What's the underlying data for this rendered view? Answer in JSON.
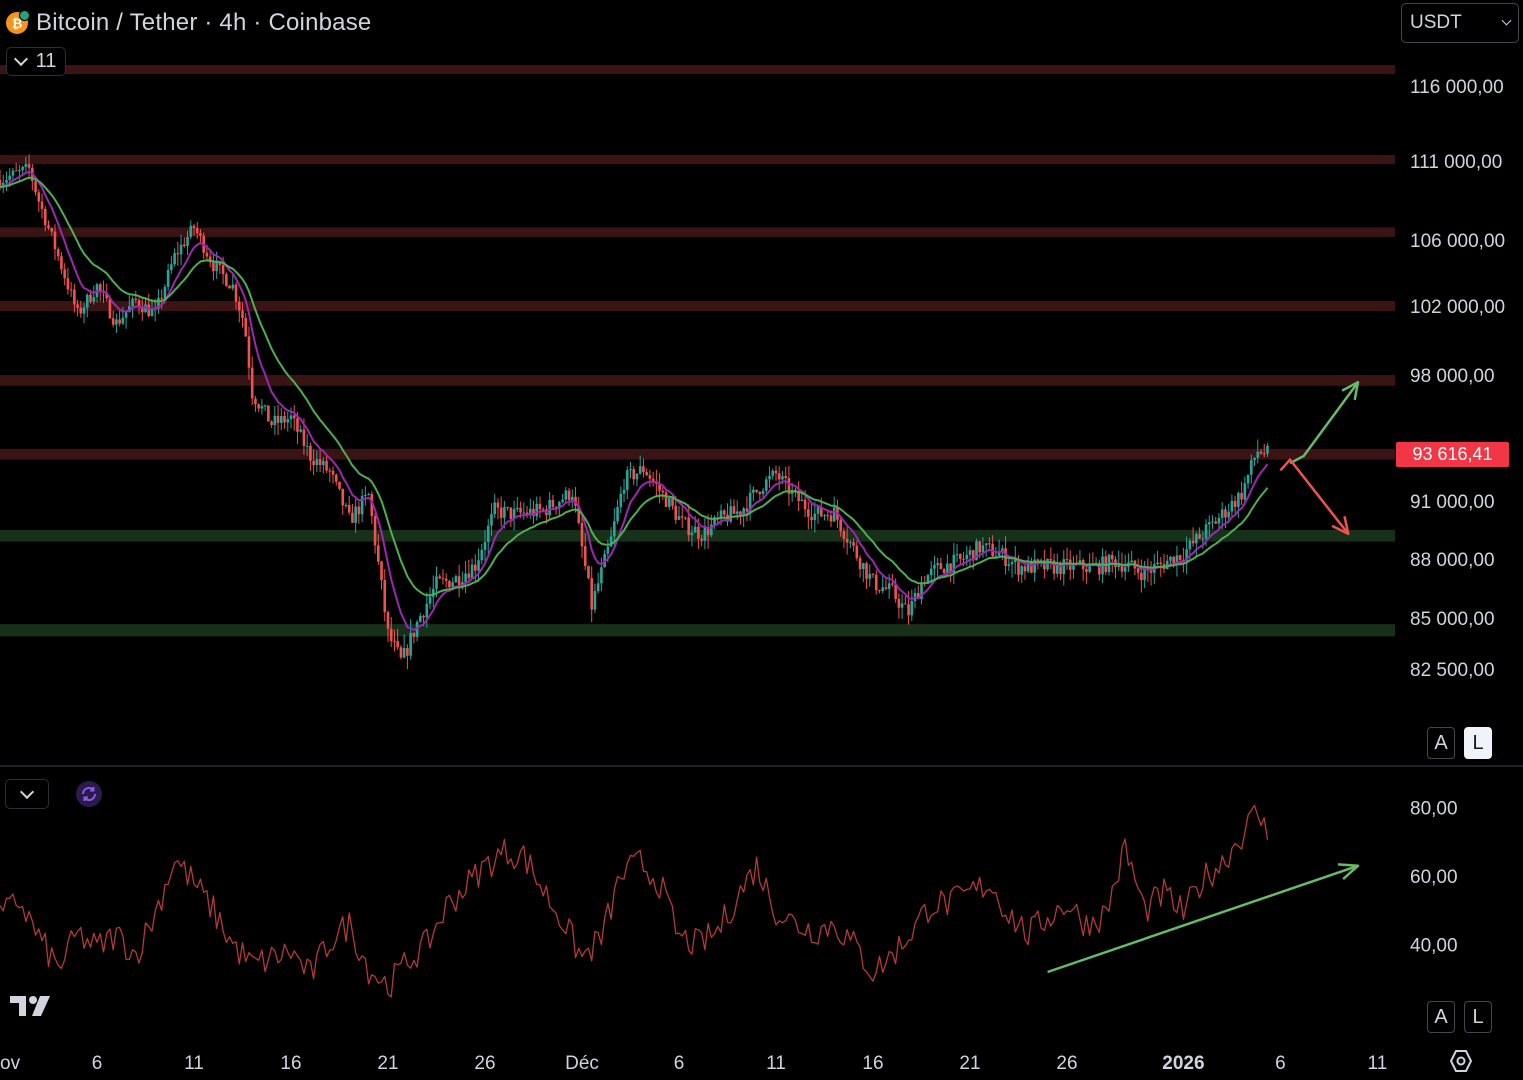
{
  "header": {
    "symbol_title": "Bitcoin / Tether · 4h · Coinbase",
    "coin_glyph": "₿",
    "collapse_count": "11",
    "currency": "USDT"
  },
  "buttons": {
    "auto_label": "A",
    "log_label": "L"
  },
  "last_price": "93 616,41",
  "colors": {
    "resistance_zone": "#3a1414",
    "support_zone": "#17301a",
    "candle_up": "#26a69a",
    "candle_down": "#ef5350",
    "ema_fast": "#9c27b0",
    "ema_slow": "#4caf50",
    "rsi_line": "#b23a3a",
    "arrow_up": "#66bb6a",
    "arrow_down": "#ef5350",
    "price_label": "#f23645"
  },
  "icons": [
    "bitcoin-tether-icon",
    "chevron-down-icon",
    "sync-icon",
    "tradingview-logo",
    "settings-icon"
  ],
  "chart_data": [
    {
      "type": "candlestick",
      "title": "Bitcoin / Tether · 4h · Coinbase",
      "ylim": [
        78800,
        118000
      ],
      "y_ticks": [
        116000,
        111000,
        106000,
        102000,
        98000,
        91000,
        88000,
        85000,
        82500
      ],
      "y_tick_labels": [
        "116 000,00",
        "111 000,00",
        "106 000,00",
        "102 000,00",
        "98 000,00",
        "91 000,00",
        "88 000,00",
        "85 000,00",
        "82 500,00"
      ],
      "x_tick_labels": [
        "ov",
        "6",
        "11",
        "16",
        "21",
        "26",
        "Déc",
        "6",
        "11",
        "16",
        "21",
        "26",
        "2026",
        "6",
        "11"
      ],
      "x_range_days": [
        0,
        72
      ],
      "x_tick_days": [
        0,
        5,
        10,
        15,
        20,
        25,
        30,
        35,
        40,
        45,
        50,
        55,
        61,
        66,
        71
      ],
      "price_path": [
        [
          0,
          109800
        ],
        [
          1.5,
          110500
        ],
        [
          2,
          108500
        ],
        [
          3,
          105000
        ],
        [
          4,
          101500
        ],
        [
          5,
          103200
        ],
        [
          6,
          101000
        ],
        [
          7,
          102300
        ],
        [
          8,
          101500
        ],
        [
          9,
          105000
        ],
        [
          10,
          106800
        ],
        [
          11,
          104500
        ],
        [
          12,
          103200
        ],
        [
          12.6,
          101000
        ],
        [
          13,
          97000
        ],
        [
          14,
          95300
        ],
        [
          15,
          95600
        ],
        [
          16,
          93500
        ],
        [
          17,
          92600
        ],
        [
          18,
          90000
        ],
        [
          19,
          91300
        ],
        [
          20,
          84200
        ],
        [
          20.7,
          82800
        ],
        [
          21.6,
          85000
        ],
        [
          22.5,
          86700
        ],
        [
          23.5,
          87000
        ],
        [
          24.5,
          87700
        ],
        [
          25.5,
          90500
        ],
        [
          26.5,
          90300
        ],
        [
          28,
          90500
        ],
        [
          29.5,
          91500
        ],
        [
          30.5,
          85600
        ],
        [
          31.5,
          89000
        ],
        [
          32.2,
          92200
        ],
        [
          33.2,
          92800
        ],
        [
          34.2,
          91300
        ],
        [
          35.2,
          89800
        ],
        [
          36.2,
          89300
        ],
        [
          37.2,
          90100
        ],
        [
          38.2,
          90500
        ],
        [
          39.2,
          91800
        ],
        [
          40,
          92500
        ],
        [
          41,
          91200
        ],
        [
          42,
          90300
        ],
        [
          43,
          90400
        ],
        [
          44,
          88500
        ],
        [
          45,
          86800
        ],
        [
          46,
          86300
        ],
        [
          46.8,
          85200
        ],
        [
          47.6,
          87000
        ],
        [
          48.5,
          87600
        ],
        [
          49.5,
          87900
        ],
        [
          50.5,
          88600
        ],
        [
          51.5,
          88300
        ],
        [
          52.5,
          87600
        ],
        [
          53.5,
          87600
        ],
        [
          55,
          87600
        ],
        [
          56.5,
          87600
        ],
        [
          57.5,
          87900
        ],
        [
          59,
          87300
        ],
        [
          60,
          87800
        ],
        [
          61,
          88300
        ],
        [
          62,
          89300
        ],
        [
          63,
          90300
        ],
        [
          64,
          91400
        ],
        [
          64.8,
          93800
        ],
        [
          65.4,
          93616
        ]
      ],
      "series": [
        {
          "name": "",
          "kind": "ema-fast",
          "color": "#9c27b0"
        },
        {
          "name": "",
          "kind": "ema-slow",
          "color": "#4caf50"
        }
      ],
      "zones": [
        {
          "kind": "resistance",
          "from": 116800,
          "to": 117400
        },
        {
          "kind": "resistance",
          "from": 110800,
          "to": 111400
        },
        {
          "kind": "resistance",
          "from": 106200,
          "to": 106800
        },
        {
          "kind": "resistance",
          "from": 101700,
          "to": 102300
        },
        {
          "kind": "resistance",
          "from": 97400,
          "to": 98000
        },
        {
          "kind": "resistance",
          "from": 93300,
          "to": 93900
        },
        {
          "kind": "support",
          "from": 88900,
          "to": 89500
        },
        {
          "kind": "support",
          "from": 84100,
          "to": 84700
        }
      ],
      "annotations": [
        {
          "kind": "arrow-up",
          "from": [
            66.5,
            93100
          ],
          "via": [
            67.2,
            93500
          ],
          "to": [
            70,
            97600
          ]
        },
        {
          "kind": "arrow-down",
          "from": [
            66,
            92700
          ],
          "via": [
            66.5,
            93300
          ],
          "to": [
            69.5,
            89300
          ]
        }
      ],
      "grid": false,
      "legend": "none",
      "last_value": 93616.41
    },
    {
      "type": "line",
      "title": "",
      "ylim": [
        18,
        86
      ],
      "y_ticks": [
        80,
        60,
        40
      ],
      "y_tick_labels": [
        "80,00",
        "60,00",
        "40,00"
      ],
      "rsi_path": [
        [
          0,
          48
        ],
        [
          1,
          53
        ],
        [
          2,
          42
        ],
        [
          3,
          33
        ],
        [
          4,
          43
        ],
        [
          5,
          39
        ],
        [
          6,
          43
        ],
        [
          7,
          37
        ],
        [
          8,
          49
        ],
        [
          9,
          65
        ],
        [
          10,
          58
        ],
        [
          11,
          50
        ],
        [
          12,
          40
        ],
        [
          13,
          34
        ],
        [
          14,
          36
        ],
        [
          15,
          38
        ],
        [
          16,
          31
        ],
        [
          17,
          41
        ],
        [
          18,
          46
        ],
        [
          19,
          33
        ],
        [
          20,
          28
        ],
        [
          21,
          35
        ],
        [
          22,
          40
        ],
        [
          23,
          51
        ],
        [
          24,
          57
        ],
        [
          25,
          63
        ],
        [
          26,
          67
        ],
        [
          27,
          66
        ],
        [
          28,
          56
        ],
        [
          29,
          47
        ],
        [
          30,
          36
        ],
        [
          31,
          42
        ],
        [
          32,
          60
        ],
        [
          33,
          64
        ],
        [
          34,
          58
        ],
        [
          35,
          42
        ],
        [
          36,
          40
        ],
        [
          37,
          44
        ],
        [
          38,
          54
        ],
        [
          39,
          63
        ],
        [
          40,
          50
        ],
        [
          41,
          46
        ],
        [
          42,
          44
        ],
        [
          43,
          46
        ],
        [
          44,
          40
        ],
        [
          45,
          32
        ],
        [
          46,
          37
        ],
        [
          47,
          44
        ],
        [
          48,
          52
        ],
        [
          49,
          52
        ],
        [
          50,
          55
        ],
        [
          51,
          58
        ],
        [
          52,
          49
        ],
        [
          53,
          43
        ],
        [
          54,
          48
        ],
        [
          55,
          52
        ],
        [
          56,
          46
        ],
        [
          57,
          49
        ],
        [
          58,
          68
        ],
        [
          59,
          50
        ],
        [
          60,
          55
        ],
        [
          61,
          49
        ],
        [
          62,
          59
        ],
        [
          63,
          64
        ],
        [
          64,
          72
        ],
        [
          64.8,
          79
        ],
        [
          65.4,
          71
        ]
      ],
      "trendline": [
        [
          54,
          32
        ],
        [
          70,
          63
        ]
      ],
      "grid": false,
      "legend": "none"
    }
  ]
}
